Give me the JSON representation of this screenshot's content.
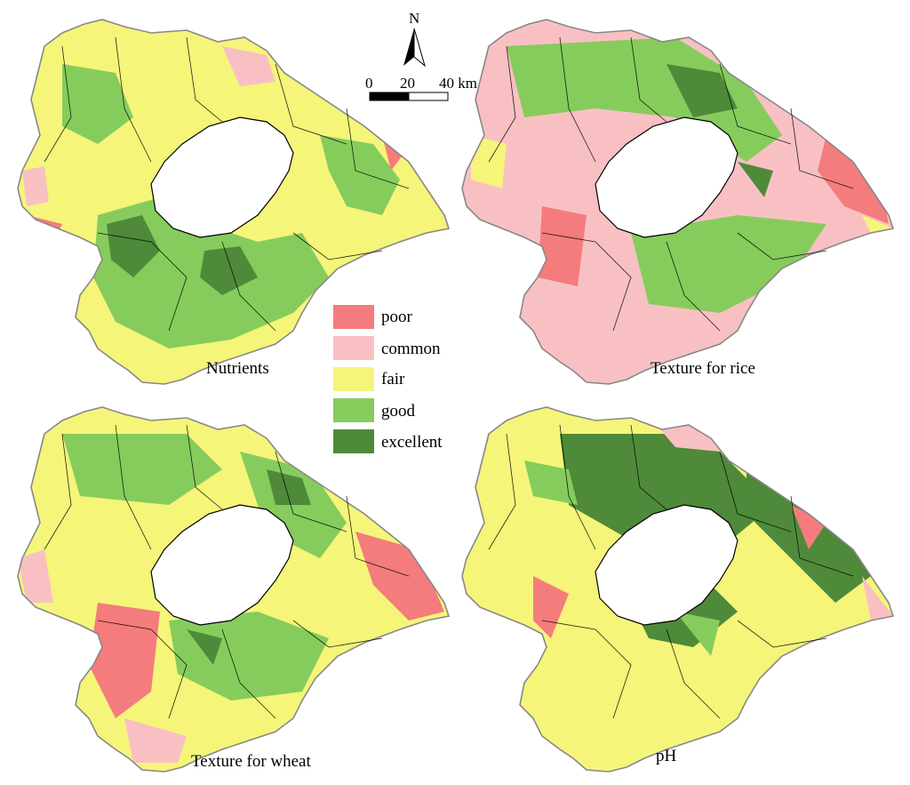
{
  "figure": {
    "panels": [
      {
        "id": "nutrients",
        "title": "Nutrients",
        "dominant_class": "fair"
      },
      {
        "id": "texture-rice",
        "title": "Texture for rice",
        "dominant_class": "common"
      },
      {
        "id": "texture-wheat",
        "title": "Texture for wheat",
        "dominant_class": "fair"
      },
      {
        "id": "ph",
        "title": "pH",
        "dominant_class": "fair"
      }
    ],
    "legend": {
      "items": [
        {
          "label": "poor",
          "color": "#f47c7c"
        },
        {
          "label": "common",
          "color": "#f9c0c3"
        },
        {
          "label": "fair",
          "color": "#f5f57a"
        },
        {
          "label": "good",
          "color": "#86cc5c"
        },
        {
          "label": "excellent",
          "color": "#4e8a3a"
        }
      ]
    },
    "north_arrow": {
      "label": "N",
      "icon": "north-arrow-icon"
    },
    "scale_bar": {
      "ticks": [
        "0",
        "20",
        "40 km"
      ]
    }
  }
}
